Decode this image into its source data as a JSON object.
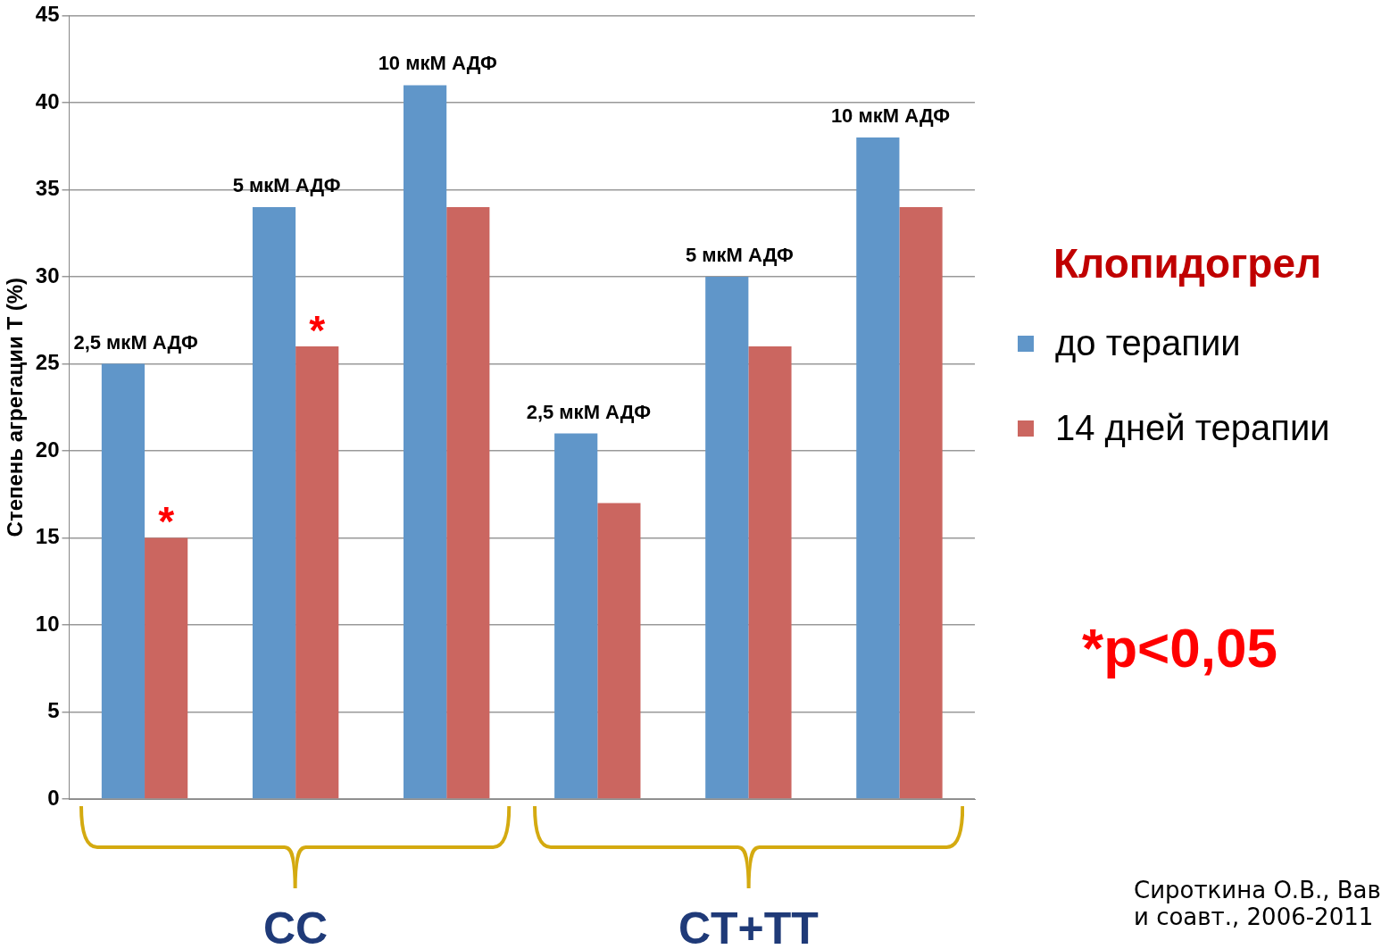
{
  "chart_data": {
    "type": "bar",
    "ylabel": "Степень агрегации Т (%)",
    "legend_title": "Клопидогрел",
    "legend": "right",
    "grid": "y",
    "categories": [
      "2,5 мкМ АДФ",
      "5 мкМ АДФ",
      "10 мкМ АДФ",
      "2,5 мкМ АДФ",
      "5 мкМ АДФ",
      "10 мкМ АДФ"
    ],
    "series": [
      {
        "name": "до терапии",
        "color": "#6096c9",
        "values": [
          25,
          34,
          41,
          21,
          30,
          38
        ]
      },
      {
        "name": "14 дней терапии",
        "color": "#cb6660",
        "values": [
          15,
          26,
          34,
          17,
          26,
          34
        ]
      }
    ],
    "ylim": [
      0,
      45
    ],
    "yticks": [
      0,
      5,
      10,
      15,
      20,
      25,
      30,
      35,
      40,
      45
    ],
    "annotations": [
      {
        "text": "*",
        "x": "2,5 мкМ АДФ",
        "y": 15
      },
      {
        "text": "*",
        "x": "5 мкМ АДФ",
        "y": 26
      },
      "CC",
      "CT+TT",
      "*p<0,05",
      "Сироткина О.В., Вав",
      "и соавт., 2006-2011"
    ]
  }
}
